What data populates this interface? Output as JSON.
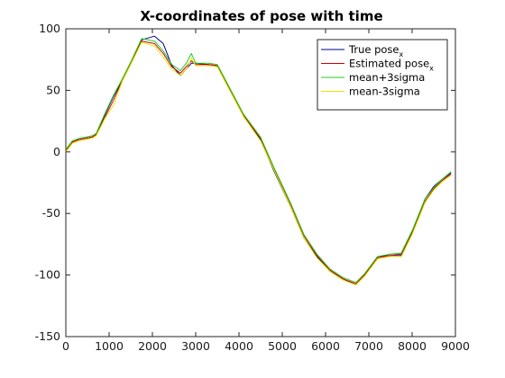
{
  "chart_data": {
    "type": "line",
    "title": "X-coordinates of pose with time",
    "xlabel": "",
    "ylabel": "",
    "xlim": [
      0,
      9000
    ],
    "ylim": [
      -150,
      100
    ],
    "xticks": [
      0,
      1000,
      2000,
      3000,
      4000,
      5000,
      6000,
      7000,
      8000,
      9000
    ],
    "yticks": [
      100,
      50,
      0,
      -50,
      -100,
      -150
    ],
    "grid": false,
    "legend_position": "top-right",
    "series": [
      {
        "name": "True pose",
        "name_subscript": "x",
        "color": "#00008b",
        "x": [
          0,
          150,
          300,
          600,
          700,
          900,
          1100,
          1300,
          1500,
          1750,
          2050,
          2250,
          2450,
          2650,
          2800,
          2900,
          3000,
          3300,
          3500,
          3800,
          4100,
          4500,
          4800,
          5200,
          5500,
          5800,
          6100,
          6400,
          6700,
          6900,
          7200,
          7500,
          7750,
          8000,
          8300,
          8500,
          8700,
          8900
        ],
        "y": [
          1,
          8,
          10,
          12,
          14,
          30,
          45,
          58,
          72,
          91,
          94,
          88,
          70,
          62,
          68,
          72,
          72,
          71,
          70,
          50,
          30,
          10,
          -15,
          -45,
          -70,
          -85,
          -97,
          -103,
          -108,
          -100,
          -85,
          -84,
          -84,
          -65,
          -38,
          -28,
          -22,
          -17
        ]
      },
      {
        "name": "Estimated pose",
        "name_subscript": "x",
        "color": "#d40000",
        "x": [
          0,
          150,
          300,
          600,
          700,
          900,
          1100,
          1300,
          1500,
          1750,
          2050,
          2250,
          2450,
          2650,
          2800,
          2900,
          3000,
          3300,
          3500,
          3800,
          4100,
          4500,
          4800,
          5200,
          5500,
          5800,
          6100,
          6400,
          6700,
          6900,
          7200,
          7500,
          7750,
          8000,
          8300,
          8500,
          8700,
          8900
        ],
        "y": [
          1,
          8,
          10,
          12,
          14,
          28,
          42,
          58,
          72,
          90,
          88,
          80,
          69,
          64,
          70,
          74,
          71,
          71,
          70,
          50,
          30,
          11,
          -13,
          -43,
          -68,
          -84,
          -96,
          -103,
          -107,
          -100,
          -86,
          -84,
          -83,
          -66,
          -40,
          -30,
          -23,
          -18
        ]
      },
      {
        "name": "mean+3sigma",
        "color": "#22cc22",
        "x": [
          0,
          150,
          300,
          600,
          700,
          900,
          1100,
          1300,
          1500,
          1750,
          2050,
          2250,
          2450,
          2650,
          2800,
          2900,
          3000,
          3300,
          3500,
          3800,
          4100,
          4500,
          4800,
          5200,
          5500,
          5800,
          6100,
          6400,
          6700,
          6900,
          7200,
          7500,
          7750,
          8000,
          8300,
          8500,
          8700,
          8900
        ],
        "y": [
          2,
          9,
          11,
          13,
          15,
          31,
          46,
          59,
          73,
          92,
          90,
          82,
          71,
          66,
          73,
          80,
          72,
          72,
          71,
          51,
          31,
          12,
          -12,
          -42,
          -67,
          -83,
          -95,
          -102,
          -106,
          -99,
          -85,
          -83,
          -82,
          -64,
          -38,
          -29,
          -22,
          -16
        ]
      },
      {
        "name": "mean-3sigma",
        "color": "#e6e600",
        "x": [
          0,
          150,
          300,
          600,
          700,
          900,
          1100,
          1300,
          1500,
          1750,
          2050,
          2250,
          2450,
          2650,
          2800,
          2900,
          3000,
          3300,
          3500,
          3800,
          4100,
          4500,
          4800,
          5200,
          5500,
          5800,
          6100,
          6400,
          6700,
          6900,
          7200,
          7500,
          7750,
          8000,
          8300,
          8500,
          8700,
          8900
        ],
        "y": [
          0,
          7,
          9,
          11,
          13,
          27,
          38,
          57,
          71,
          89,
          86,
          77,
          67,
          62,
          68,
          76,
          70,
          70,
          69,
          49,
          29,
          9,
          -14,
          -45,
          -70,
          -86,
          -97,
          -104,
          -108,
          -101,
          -87,
          -85,
          -85,
          -67,
          -41,
          -31,
          -24,
          -19
        ]
      }
    ]
  }
}
